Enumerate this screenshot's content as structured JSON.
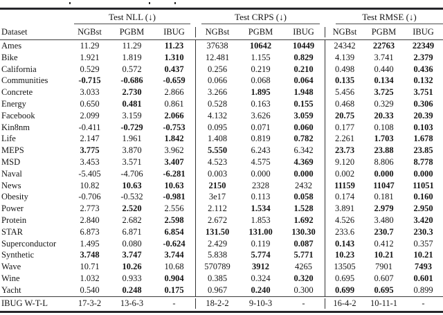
{
  "note_bold_marker": "values prefixed with * are rendered in boldface",
  "table": {
    "groups": [
      "Test NLL (↓)",
      "Test CRPS (↓)",
      "Test RMSE (↓)"
    ],
    "dataset_header": "Dataset",
    "method_headers": [
      "NGBst",
      "PGBM",
      "IBUG"
    ],
    "rows": [
      {
        "dataset": "Ames",
        "values": [
          "11.29",
          "11.29",
          "*11.23",
          "37638",
          "*10642",
          "*10449",
          "24342",
          "*22763",
          "*22349"
        ]
      },
      {
        "dataset": "Bike",
        "values": [
          "1.921",
          "1.819",
          "*1.310",
          "12.481",
          "1.155",
          "*0.829",
          "4.139",
          "3.741",
          "*2.379"
        ]
      },
      {
        "dataset": "California",
        "values": [
          "0.529",
          "0.572",
          "*0.437",
          "0.256",
          "0.219",
          "*0.210",
          "0.498",
          "0.440",
          "*0.436"
        ]
      },
      {
        "dataset": "Communities",
        "values": [
          "*-0.715",
          "*-0.686",
          "*-0.659",
          "0.066",
          "0.068",
          "*0.064",
          "*0.135",
          "*0.134",
          "*0.132"
        ]
      },
      {
        "dataset": "Concrete",
        "values": [
          "3.033",
          "*2.730",
          "2.866",
          "3.266",
          "*1.895",
          "*1.948",
          "5.456",
          "*3.725",
          "*3.751"
        ]
      },
      {
        "dataset": "Energy",
        "values": [
          "0.650",
          "*0.481",
          "0.861",
          "0.528",
          "0.163",
          "*0.155",
          "0.468",
          "0.329",
          "*0.306"
        ]
      },
      {
        "dataset": "Facebook",
        "values": [
          "2.099",
          "3.159",
          "*2.066",
          "4.132",
          "3.626",
          "*3.059",
          "*20.75",
          "*20.33",
          "*20.39"
        ]
      },
      {
        "dataset": "Kin8nm",
        "values": [
          "-0.411",
          "*-0.729",
          "*-0.753",
          "0.095",
          "0.071",
          "*0.060",
          "0.177",
          "0.108",
          "*0.103"
        ]
      },
      {
        "dataset": "Life",
        "values": [
          "2.147",
          "1.961",
          "*1.842",
          "1.408",
          "0.819",
          "*0.782",
          "2.261",
          "*1.703",
          "*1.678"
        ]
      },
      {
        "dataset": "MEPS",
        "values": [
          "*3.775",
          "3.870",
          "3.962",
          "*5.550",
          "6.243",
          "6.342",
          "*23.73",
          "*23.88",
          "*23.85"
        ]
      },
      {
        "dataset": "MSD",
        "values": [
          "3.453",
          "3.571",
          "*3.407",
          "4.523",
          "4.575",
          "*4.369",
          "9.120",
          "8.806",
          "*8.778"
        ]
      },
      {
        "dataset": "Naval",
        "values": [
          "-5.405",
          "-4.706",
          "*-6.281",
          "0.003",
          "0.000",
          "*0.000",
          "0.002",
          "*0.000",
          "*0.000"
        ]
      },
      {
        "dataset": "News",
        "values": [
          "10.82",
          "*10.63",
          "*10.63",
          "*2150",
          "2328",
          "2432",
          "*11159",
          "*11047",
          "*11051"
        ]
      },
      {
        "dataset": "Obesity",
        "values": [
          "-0.706",
          "-0.532",
          "*-0.981",
          "3e17",
          "0.113",
          "*0.058",
          "0.174",
          "0.181",
          "*0.160"
        ]
      },
      {
        "dataset": "Power",
        "values": [
          "2.773",
          "*2.520",
          "2.556",
          "2.112",
          "*1.534",
          "*1.528",
          "3.891",
          "*2.979",
          "*2.950"
        ]
      },
      {
        "dataset": "Protein",
        "values": [
          "2.840",
          "2.682",
          "*2.598",
          "2.672",
          "1.853",
          "*1.692",
          "4.526",
          "3.480",
          "*3.420"
        ]
      },
      {
        "dataset": "STAR",
        "values": [
          "6.873",
          "6.871",
          "*6.854",
          "*131.50",
          "*131.00",
          "*130.30",
          "233.6",
          "*230.7",
          "*230.3"
        ]
      },
      {
        "dataset": "Superconductor",
        "values": [
          "1.495",
          "0.080",
          "*-0.624",
          "2.429",
          "0.119",
          "*0.087",
          "*0.143",
          "0.412",
          "0.357"
        ]
      },
      {
        "dataset": "Synthetic",
        "values": [
          "*3.748",
          "*3.747",
          "*3.744",
          "5.838",
          "*5.774",
          "*5.771",
          "*10.23",
          "*10.21",
          "*10.21"
        ]
      },
      {
        "dataset": "Wave",
        "values": [
          "10.71",
          "*10.26",
          "10.68",
          "570789",
          "*3912",
          "4265",
          "13505",
          "7901",
          "*7493"
        ]
      },
      {
        "dataset": "Wine",
        "values": [
          "1.032",
          "0.933",
          "*0.904",
          "0.385",
          "0.324",
          "*0.320",
          "0.695",
          "0.607",
          "*0.601"
        ]
      },
      {
        "dataset": "Yacht",
        "values": [
          "0.540",
          "*0.248",
          "*0.175",
          "0.967",
          "*0.240",
          "0.300",
          "*0.699",
          "*0.695",
          "0.899"
        ]
      }
    ],
    "footer": {
      "label": "IBUG W-T-L",
      "values": [
        "17-3-2",
        "13-6-3",
        "-",
        "18-2-2",
        "9-10-3",
        "-",
        "16-4-2",
        "10-11-1",
        "-"
      ]
    }
  }
}
